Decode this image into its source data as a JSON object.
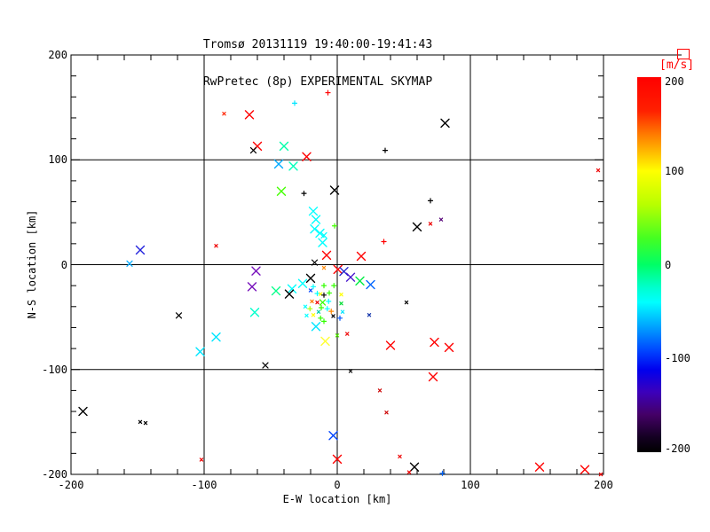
{
  "header": {
    "title_line1": "Tromsø 20131119 19:40:00-19:41:43",
    "title_line2": "RwPretec (8p) EXPERIMENTAL SKYMAP"
  },
  "chart_data": {
    "type": "scatter",
    "title": "Tromsø 20131119 19:40:00-19:41:43",
    "subtitle": "RwPretec (8p) EXPERIMENTAL SKYMAP",
    "xlabel": "E-W location [km]",
    "ylabel": "N-S location [km]",
    "xlim": [
      -200,
      200
    ],
    "ylim": [
      -200,
      200
    ],
    "x_tick_values": [
      -200,
      -100,
      0,
      100,
      200
    ],
    "x_tick_labels": [
      "-200",
      "-100",
      "0",
      "100",
      "200"
    ],
    "y_tick_values": [
      -200,
      -100,
      0,
      100,
      200
    ],
    "y_tick_labels": [
      "-200",
      "-100",
      "0",
      "100",
      "200"
    ],
    "minor_tick_step": 20,
    "grid_lines": [
      -100,
      0,
      100
    ],
    "grid": true,
    "colorbar": {
      "unit_label": "[m/s]",
      "unit_label_color": "#ff0000",
      "tick_values": [
        200,
        100,
        0,
        -100,
        -200
      ],
      "tick_labels": [
        "200",
        "100",
        "0",
        "-100",
        "-200"
      ],
      "range": [
        -200,
        200
      ],
      "gradient_stops": [
        [
          0.0,
          "#ff0000"
        ],
        [
          0.09,
          "#ff2000"
        ],
        [
          0.15,
          "#ff7700"
        ],
        [
          0.25,
          "#ffff00"
        ],
        [
          0.34,
          "#b8ff00"
        ],
        [
          0.43,
          "#44ff22"
        ],
        [
          0.5,
          "#00ff66"
        ],
        [
          0.56,
          "#00ffcc"
        ],
        [
          0.6,
          "#00ffff"
        ],
        [
          0.66,
          "#00aaff"
        ],
        [
          0.73,
          "#0044ff"
        ],
        [
          0.78,
          "#0000ee"
        ],
        [
          0.84,
          "#3c00bb"
        ],
        [
          0.9,
          "#440066"
        ],
        [
          0.96,
          "#140022"
        ],
        [
          1.0,
          "#000000"
        ]
      ]
    },
    "points": [
      {
        "x": -7,
        "y": 164,
        "c": "#ff0000",
        "m": "+"
      },
      {
        "x": -32,
        "y": 154,
        "c": "#00e5ff",
        "m": "+"
      },
      {
        "x": -85,
        "y": 144,
        "c": "#ff2200",
        "m": "."
      },
      {
        "x": -66,
        "y": 143,
        "c": "#ff0000",
        "m": "X"
      },
      {
        "x": -60,
        "y": 113,
        "c": "#ff0000",
        "m": "X"
      },
      {
        "x": -63,
        "y": 109,
        "c": "#000000",
        "m": "x"
      },
      {
        "x": -40,
        "y": 113,
        "c": "#00ffaa",
        "m": "X"
      },
      {
        "x": -23,
        "y": 103,
        "c": "#ff0000",
        "m": "X"
      },
      {
        "x": -44,
        "y": 96,
        "c": "#00aaff",
        "m": "X"
      },
      {
        "x": -33,
        "y": 94,
        "c": "#00ffbb",
        "m": "X"
      },
      {
        "x": -42,
        "y": 70,
        "c": "#44ff00",
        "m": "X"
      },
      {
        "x": -25,
        "y": 68,
        "c": "#000000",
        "m": "+"
      },
      {
        "x": -2,
        "y": 71,
        "c": "#000000",
        "m": "X"
      },
      {
        "x": -18,
        "y": 51,
        "c": "#00ffff",
        "m": "X"
      },
      {
        "x": -16,
        "y": 43,
        "c": "#00ffff",
        "m": "X"
      },
      {
        "x": -17,
        "y": 34,
        "c": "#00ffff",
        "m": "X"
      },
      {
        "x": -13,
        "y": 30,
        "c": "#00ffff",
        "m": "X"
      },
      {
        "x": -10,
        "y": 28,
        "c": "#00ffff",
        "m": "x"
      },
      {
        "x": -11,
        "y": 21,
        "c": "#00ffff",
        "m": "X"
      },
      {
        "x": -2,
        "y": 37,
        "c": "#44ff00",
        "m": "+"
      },
      {
        "x": -91,
        "y": 18,
        "c": "#ee0000",
        "m": "."
      },
      {
        "x": -8,
        "y": 9,
        "c": "#ff0000",
        "m": "X"
      },
      {
        "x": -148,
        "y": 14,
        "c": "#2222dd",
        "m": "X"
      },
      {
        "x": -156,
        "y": 1,
        "c": "#00aaff",
        "m": "x"
      },
      {
        "x": -17,
        "y": 2,
        "c": "#000000",
        "m": "x"
      },
      {
        "x": 81,
        "y": 135,
        "c": "#000000",
        "m": "X"
      },
      {
        "x": 36,
        "y": 109,
        "c": "#000000",
        "m": "+"
      },
      {
        "x": 196,
        "y": 90,
        "c": "#ee0000",
        "m": "."
      },
      {
        "x": 70,
        "y": 61,
        "c": "#000000",
        "m": "+"
      },
      {
        "x": 78,
        "y": 43,
        "c": "#550077",
        "m": "."
      },
      {
        "x": 70,
        "y": 39,
        "c": "#ee0000",
        "m": "."
      },
      {
        "x": 60,
        "y": 36,
        "c": "#000000",
        "m": "X"
      },
      {
        "x": 35,
        "y": 22,
        "c": "#ff0000",
        "m": "+"
      },
      {
        "x": 18,
        "y": 8,
        "c": "#ff0000",
        "m": "X"
      },
      {
        "x": 0.5,
        "y": -4.5,
        "c": "#ff0000",
        "m": "X"
      },
      {
        "x": -10,
        "y": -3,
        "c": "#ff8800",
        "m": "."
      },
      {
        "x": 5,
        "y": -6.5,
        "c": "#2222cc",
        "m": "X"
      },
      {
        "x": 10,
        "y": -12,
        "c": "#4411cc",
        "m": "X"
      },
      {
        "x": -61,
        "y": -6,
        "c": "#7711bb",
        "m": "X"
      },
      {
        "x": -64,
        "y": -21,
        "c": "#7711bb",
        "m": "X"
      },
      {
        "x": -20,
        "y": -13,
        "c": "#000000",
        "m": "X"
      },
      {
        "x": 17,
        "y": -15.5,
        "c": "#00ee44",
        "m": "X"
      },
      {
        "x": 25,
        "y": -19,
        "c": "#0066ff",
        "m": "X"
      },
      {
        "x": -26,
        "y": -18,
        "c": "#00ffff",
        "m": "X"
      },
      {
        "x": -46,
        "y": -25,
        "c": "#00ff88",
        "m": "X"
      },
      {
        "x": -34,
        "y": -23,
        "c": "#00ffff",
        "m": "X"
      },
      {
        "x": -36,
        "y": -28,
        "c": "#000000",
        "m": "X"
      },
      {
        "x": -18,
        "y": -21,
        "c": "#00ffff",
        "m": "+"
      },
      {
        "x": -10,
        "y": -20,
        "c": "#33ff00",
        "m": "+"
      },
      {
        "x": -2.5,
        "y": -20,
        "c": "#33ff00",
        "m": "+"
      },
      {
        "x": -20,
        "y": -24.5,
        "c": "#0044ff",
        "m": "."
      },
      {
        "x": -15,
        "y": -27.5,
        "c": "#00ffff",
        "m": "+"
      },
      {
        "x": -12.5,
        "y": -28,
        "c": "#ffff00",
        "m": "."
      },
      {
        "x": -10,
        "y": -29,
        "c": "#000000",
        "m": "+"
      },
      {
        "x": -6,
        "y": -27,
        "c": "#33ff00",
        "m": "+"
      },
      {
        "x": 3,
        "y": -28.5,
        "c": "#ffff00",
        "m": "."
      },
      {
        "x": -19,
        "y": -35,
        "c": "#ff7700",
        "m": "."
      },
      {
        "x": -15,
        "y": -36,
        "c": "#ee0000",
        "m": "."
      },
      {
        "x": -11,
        "y": -36,
        "c": "#33ff00",
        "m": "x"
      },
      {
        "x": -6.5,
        "y": -35,
        "c": "#00ffff",
        "m": "+"
      },
      {
        "x": 3,
        "y": -37,
        "c": "#00dd33",
        "m": "."
      },
      {
        "x": -24,
        "y": -40,
        "c": "#00ffff",
        "m": "."
      },
      {
        "x": -20.5,
        "y": -42,
        "c": "#aaff00",
        "m": "+"
      },
      {
        "x": -12,
        "y": -41,
        "c": "#33ff00",
        "m": "+"
      },
      {
        "x": -7.5,
        "y": -42,
        "c": "#00ffff",
        "m": "+"
      },
      {
        "x": -14,
        "y": -45,
        "c": "#00ccaa",
        "m": "."
      },
      {
        "x": -4.5,
        "y": -44.5,
        "c": "#ff8800",
        "m": "+"
      },
      {
        "x": -18,
        "y": -48,
        "c": "#ffff00",
        "m": "."
      },
      {
        "x": -23,
        "y": -48.5,
        "c": "#00ffff",
        "m": "."
      },
      {
        "x": 4,
        "y": -45,
        "c": "#00e5ff",
        "m": "."
      },
      {
        "x": -3,
        "y": -49,
        "c": "#000000",
        "m": "."
      },
      {
        "x": 2,
        "y": -51,
        "c": "#0055ff",
        "m": "+"
      },
      {
        "x": 24,
        "y": -48,
        "c": "#1133aa",
        "m": "."
      },
      {
        "x": -12.5,
        "y": -51,
        "c": "#33ff00",
        "m": "+"
      },
      {
        "x": -10,
        "y": -54,
        "c": "#33ff00",
        "m": "+"
      },
      {
        "x": 52,
        "y": -36,
        "c": "#000000",
        "m": "."
      },
      {
        "x": -62,
        "y": -45.5,
        "c": "#00ffcc",
        "m": "X"
      },
      {
        "x": -119,
        "y": -48.5,
        "c": "#000000",
        "m": "x"
      },
      {
        "x": -16,
        "y": -59,
        "c": "#00e5ff",
        "m": "X"
      },
      {
        "x": -91,
        "y": -69,
        "c": "#00e5ff",
        "m": "X"
      },
      {
        "x": -9,
        "y": -73,
        "c": "#ffff33",
        "m": "X"
      },
      {
        "x": 0,
        "y": -67.5,
        "c": "#55ee00",
        "m": "."
      },
      {
        "x": 7.5,
        "y": -66,
        "c": "#ee0000",
        "m": "."
      },
      {
        "x": -103,
        "y": -83,
        "c": "#00e5ff",
        "m": "X"
      },
      {
        "x": -54,
        "y": -96,
        "c": "#000000",
        "m": "x"
      },
      {
        "x": -191,
        "y": -140,
        "c": "#000000",
        "m": "X"
      },
      {
        "x": -148,
        "y": -150,
        "c": "#000000",
        "m": "."
      },
      {
        "x": -144,
        "y": -151,
        "c": "#000000",
        "m": "."
      },
      {
        "x": -3,
        "y": -163,
        "c": "#0044ff",
        "m": "X"
      },
      {
        "x": -102,
        "y": -186,
        "c": "#ee0000",
        "m": "."
      },
      {
        "x": 0,
        "y": -185.5,
        "c": "#ff0000",
        "m": "X"
      },
      {
        "x": 40,
        "y": -77,
        "c": "#ff0000",
        "m": "X"
      },
      {
        "x": 73,
        "y": -74,
        "c": "#ff0000",
        "m": "X"
      },
      {
        "x": 84,
        "y": -79,
        "c": "#ff0000",
        "m": "X"
      },
      {
        "x": 10,
        "y": -101.5,
        "c": "#000000",
        "m": "."
      },
      {
        "x": 72,
        "y": -107,
        "c": "#ff0000",
        "m": "X"
      },
      {
        "x": 32,
        "y": -120,
        "c": "#cc0000",
        "m": "."
      },
      {
        "x": 37,
        "y": -141,
        "c": "#cc0000",
        "m": "."
      },
      {
        "x": 47,
        "y": -183,
        "c": "#ee0000",
        "m": "."
      },
      {
        "x": 58,
        "y": -193,
        "c": "#000000",
        "m": "X"
      },
      {
        "x": 54,
        "y": -198,
        "c": "#ee0000",
        "m": "."
      },
      {
        "x": 79,
        "y": -199,
        "c": "#0066ff",
        "m": "+"
      },
      {
        "x": 152,
        "y": -193,
        "c": "#ff0000",
        "m": "X"
      },
      {
        "x": 186,
        "y": -195.5,
        "c": "#ff0000",
        "m": "X"
      },
      {
        "x": 198,
        "y": -200,
        "c": "#ee0000",
        "m": "."
      }
    ]
  }
}
